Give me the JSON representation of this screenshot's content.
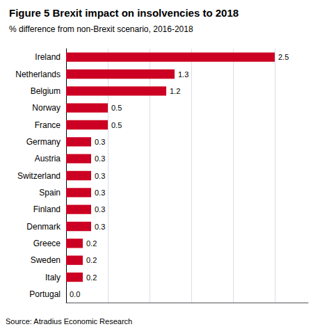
{
  "chart_data": {
    "type": "bar",
    "orientation": "horizontal",
    "title": "Figure 5 Brexit impact on insolvencies to 2018",
    "subtitle": "% difference from non-Brexit scenario, 2016-2018",
    "annotations": [
      "Source: Atradius Economic Research"
    ],
    "categories": [
      "Ireland",
      "Netherlands",
      "Belgium",
      "Norway",
      "France",
      "Germany",
      "Austria",
      "Switzerland",
      "Spain",
      "Finland",
      "Denmark",
      "Greece",
      "Sweden",
      "Italy",
      "Portugal"
    ],
    "values": [
      2.5,
      1.3,
      1.2,
      0.5,
      0.5,
      0.3,
      0.3,
      0.3,
      0.3,
      0.3,
      0.3,
      0.2,
      0.2,
      0.2,
      0.0
    ],
    "value_labels": [
      "2.5",
      "1.3",
      "1.2",
      "0.5",
      "0.5",
      "0.3",
      "0.3",
      "0.3",
      "0.3",
      "0.3",
      "0.3",
      "0.2",
      "0.2",
      "0.2",
      "0.0"
    ],
    "data_labels": true,
    "color": "#cc0022",
    "xlim": [
      0,
      2.9
    ],
    "xticks": [
      0.5,
      1.0,
      1.5,
      2.0,
      2.5
    ],
    "grid": true,
    "tick_labels": "y"
  }
}
